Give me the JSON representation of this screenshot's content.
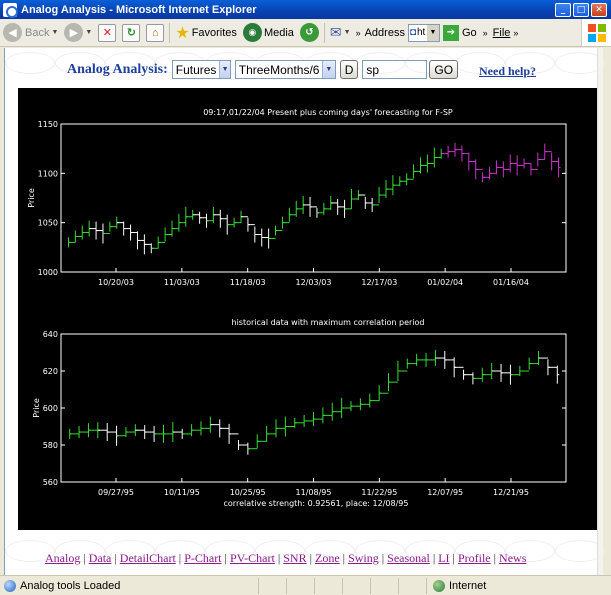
{
  "window": {
    "title": "Analog Analysis - Microsoft Internet Explorer"
  },
  "toolbar": {
    "back": "Back",
    "favorites": "Favorites",
    "media": "Media",
    "address_label": "Address",
    "address_value": "ht",
    "go": "Go",
    "file_menu": "File"
  },
  "form": {
    "brand": "Analog Analysis:",
    "market": "Futures",
    "period": "ThreeMonths/63",
    "d_button": "D",
    "symbol": "sp",
    "go_button": "GO",
    "help": "Need help?"
  },
  "chart_data": [
    {
      "type": "line",
      "title": "09:17,01/22/04    Present plus coming days' forecasting for F-SP",
      "ylabel": "Price",
      "ylim": [
        1000,
        1150
      ],
      "yticks": [
        "1000",
        "1050",
        "1100",
        "1150"
      ],
      "xticks": [
        "10/20/03",
        "11/03/03",
        "11/18/03",
        "12/03/03",
        "12/17/03",
        "01/02/04",
        "01/16/04"
      ],
      "colors": {
        "up": "#33dd33",
        "down": "#ffffff",
        "forecast": "#cc33cc"
      },
      "series": [
        {
          "values": [
            1030,
            1036,
            1040,
            1044,
            1042,
            1039,
            1046,
            1050,
            1044,
            1040,
            1032,
            1028,
            1024,
            1030,
            1038,
            1044,
            1050,
            1056,
            1058,
            1055,
            1052,
            1058,
            1054,
            1048,
            1050,
            1056,
            1048,
            1038,
            1035,
            1034,
            1042,
            1050,
            1058,
            1064,
            1068,
            1066,
            1060,
            1064,
            1070,
            1066,
            1064,
            1074,
            1078,
            1070,
            1068,
            1078,
            1084,
            1088,
            1092,
            1094,
            1102,
            1108,
            1110,
            1116,
            1120
          ]
        },
        {
          "values": [
            1122,
            1124,
            1120,
            1112,
            1104,
            1096,
            1100,
            1106,
            1104,
            1110,
            1108,
            1110,
            1104,
            1114,
            1122,
            1112,
            1106
          ]
        }
      ]
    },
    {
      "type": "line",
      "title": "historical data with maximum correlation period",
      "ylabel": "Price",
      "ylim": [
        560,
        640
      ],
      "yticks": [
        "560",
        "580",
        "600",
        "620",
        "640"
      ],
      "xticks": [
        "09/27/95",
        "10/11/95",
        "10/25/95",
        "11/08/95",
        "11/22/95",
        "12/07/95",
        "12/21/95"
      ],
      "footer": "correlative strength: 0.92561, place: 12/08/95",
      "colors": {
        "up": "#33dd33",
        "down": "#ffffff"
      },
      "series": [
        {
          "values": [
            586,
            587,
            588,
            588,
            587,
            585,
            587,
            588,
            587,
            586,
            586,
            587,
            586,
            588,
            589,
            591,
            589,
            586,
            580,
            578,
            582,
            586,
            589,
            590,
            592,
            593,
            594,
            596,
            598,
            600,
            601,
            602,
            604,
            608,
            614,
            620,
            624,
            626,
            626,
            627,
            626,
            622,
            618,
            616,
            618,
            620,
            619,
            618,
            620,
            624,
            627,
            622,
            618
          ]
        }
      ]
    }
  ],
  "links": [
    "Analog",
    "Data",
    "DetailChart",
    "P-Chart",
    "PV-Chart",
    "SNR",
    "Zone",
    "Swing",
    "Seasonal",
    "LI",
    "Profile",
    "News"
  ],
  "status": {
    "text": "Analog tools Loaded",
    "zone": "Internet"
  }
}
